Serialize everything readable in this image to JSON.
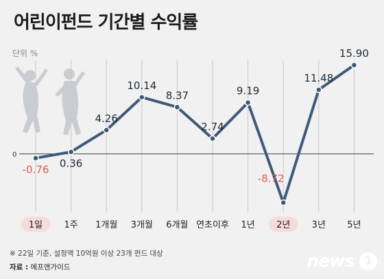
{
  "title": "어린이펀드 기간별 수익률",
  "unit_label": "단위 %",
  "footnote": "※ 22일 기준, 설정액 10억원 이상 23개 펀드 대상",
  "source_key": "자료 :",
  "source_value": "에프앤가이드",
  "logo": {
    "text": "news",
    "badge": "1"
  },
  "colors": {
    "line": "#3f5a78",
    "positive": "#1c2b38",
    "negative": "#e05a4f",
    "highlight_pill": "#f7dada",
    "silhouette": "#c9cdd2"
  },
  "chart_data": {
    "type": "line",
    "categories": [
      "1일",
      "1주",
      "1개월",
      "3개월",
      "6개월",
      "연초이후",
      "1년",
      "2년",
      "3년",
      "5년"
    ],
    "values": [
      -0.76,
      0.36,
      4.26,
      10.14,
      8.37,
      2.74,
      9.19,
      -8.72,
      11.48,
      15.9
    ],
    "value_labels": [
      "-0.76",
      "0.36",
      "4.26",
      "10.14",
      "8.37",
      "2.74",
      "9.19",
      "-8.72",
      "11.48",
      "15.90"
    ],
    "ylim": [
      -10,
      18
    ],
    "y_ticks": [
      0
    ],
    "highlighted_categories": [
      "1일",
      "2년"
    ],
    "vertical_gridlines": true
  }
}
